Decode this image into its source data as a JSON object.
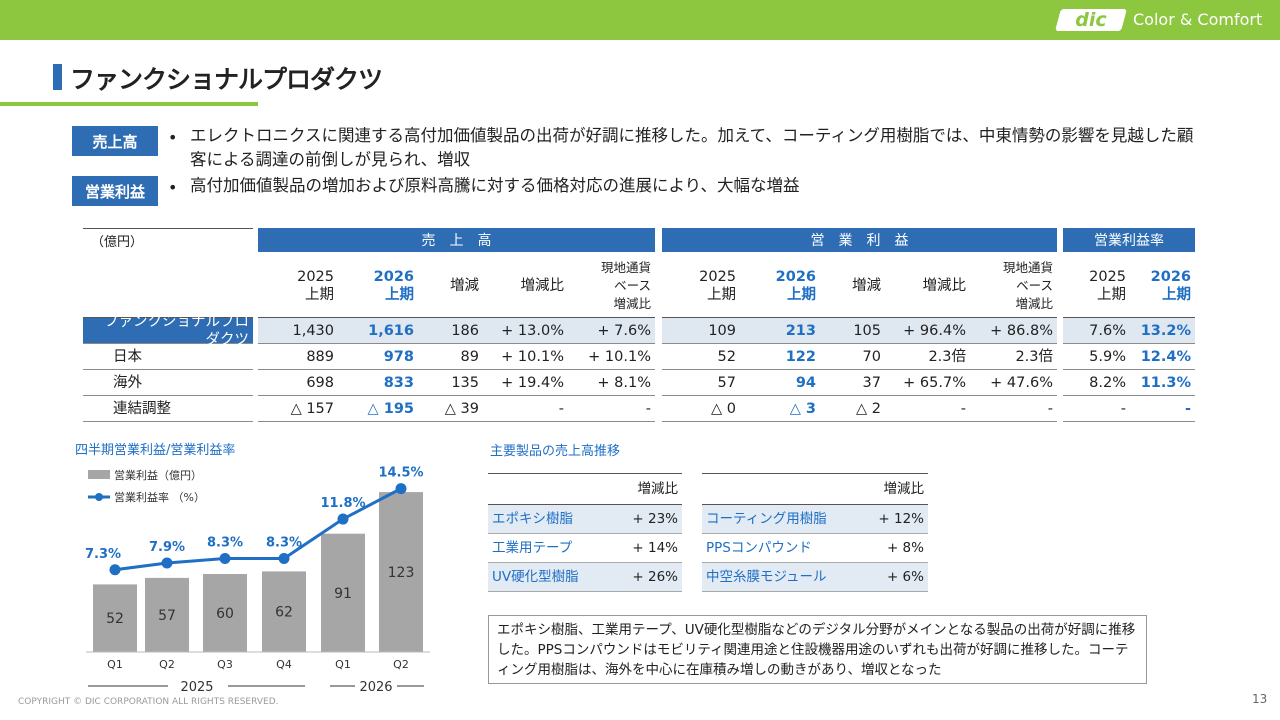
{
  "header": {
    "logo": "dic",
    "tagline": "Color & Comfort",
    "title": "ファンクショナルプロダクツ"
  },
  "summary": [
    {
      "label": "売上高",
      "text": "エレクトロニクスに関連する高付加価値製品の出荷が好調に推移した。加えて、コーティング用樹脂では、中東情勢の影響を見越した顧客による調達の前倒しが見られ、増収"
    },
    {
      "label": "営業利益",
      "text": "高付加価値製品の増加および原料高騰に対する価格対応の進展により、大幅な増益"
    }
  ],
  "table": {
    "unit": "（億円）",
    "groups": [
      "売　上　高",
      "営　業　利　益",
      "営業利益率"
    ],
    "columns": [
      "2025\n上期",
      "2026\n上期",
      "増減",
      "増減比",
      "現地通貨\nベース\n増減比",
      "2025\n上期",
      "2026\n上期",
      "増減",
      "増減比",
      "現地通貨\nベース\n増減比",
      "2025\n上期",
      "2026\n上期"
    ],
    "rows": [
      [
        "ファンクショナルプロダクツ",
        "1,430",
        "1,616",
        "186",
        "+ 13.0%",
        "+ 7.6%",
        "109",
        "213",
        "105",
        "+ 96.4%",
        "+ 86.8%",
        "7.6%",
        "13.2%"
      ],
      [
        "日本",
        "889",
        "978",
        "89",
        "+ 10.1%",
        "+ 10.1%",
        "52",
        "122",
        "70",
        "2.3倍",
        "2.3倍",
        "5.9%",
        "12.4%"
      ],
      [
        "海外",
        "698",
        "833",
        "135",
        "+ 19.4%",
        "+ 8.1%",
        "57",
        "94",
        "37",
        "+ 65.7%",
        "+ 47.6%",
        "8.2%",
        "11.3%"
      ],
      [
        "連結調整",
        "△ 157",
        "△ 195",
        "△ 39",
        "-",
        "-",
        "△ 0",
        "△ 3",
        "△ 2",
        "-",
        "-",
        "-",
        "-"
      ]
    ]
  },
  "chart_data": {
    "type": "bar",
    "title": "四半期営業利益/営業利益率",
    "categories": [
      "Q1",
      "Q2",
      "Q3",
      "Q4",
      "Q1",
      "Q2"
    ],
    "groups": [
      "2025",
      "2026"
    ],
    "ylim": [
      0,
      130
    ],
    "y2lim": [
      0,
      15
    ],
    "series": [
      {
        "name": "営業利益（億円）",
        "type": "bar",
        "color": "#a6a6a6",
        "values": [
          52,
          57,
          60,
          62,
          91,
          123
        ]
      },
      {
        "name": "営業利益率 （%）",
        "type": "line",
        "axis": "y2",
        "color": "#1f6fc5",
        "values": [
          7.3,
          7.9,
          8.3,
          8.3,
          11.8,
          14.5
        ],
        "value_labels": [
          "7.3%",
          "7.9%",
          "8.3%",
          "8.3%",
          "11.8%",
          "14.5%"
        ]
      }
    ]
  },
  "products": {
    "title": "主要製品の売上高推移",
    "tables": [
      {
        "header": "増減比",
        "rows": [
          [
            "エポキシ樹脂",
            "+ 23%"
          ],
          [
            "工業用テープ",
            "+ 14%"
          ],
          [
            "UV硬化型樹脂",
            "+ 26%"
          ]
        ]
      },
      {
        "header": "増減比",
        "rows": [
          [
            "コーティング用樹脂",
            "+ 12%"
          ],
          [
            "PPSコンパウンド",
            "+ 8%"
          ],
          [
            "中空糸膜モジュール",
            "+ 6%"
          ]
        ]
      }
    ],
    "note": "エポキシ樹脂、工業用テープ、UV硬化型樹脂などのデジタル分野がメインとなる製品の出荷が好調に推移した。PPSコンパウンドはモビリティ関連用途と住設機器用途のいずれも出荷が好調に推移した。コーティング用樹脂は、海外を中心に在庫積み増しの動きがあり、増収となった"
  },
  "footer": {
    "copyright": "COPYRIGHT © DIC CORPORATION ALL RIGHTS RESERVED.",
    "page": "13"
  }
}
